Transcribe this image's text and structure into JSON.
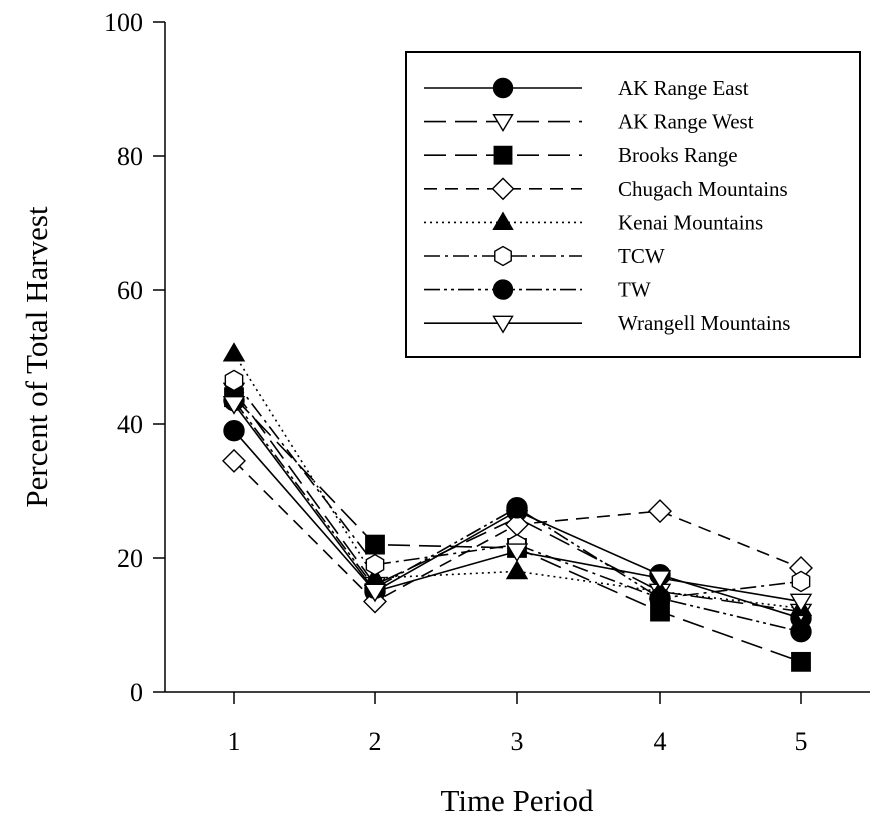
{
  "chart_data": {
    "type": "line",
    "title": "",
    "xlabel": "Time Period",
    "ylabel": "Percent of Total Harvest",
    "x": [
      1,
      2,
      3,
      4,
      5
    ],
    "x_ticks": [
      "1",
      "2",
      "3",
      "4",
      "5"
    ],
    "ylim": [
      0,
      100
    ],
    "y_ticks": [
      "0",
      "20",
      "40",
      "60",
      "80",
      "100"
    ],
    "grid": false,
    "legend_position": "top-right",
    "series": [
      {
        "name": "AK Range East",
        "values": [
          39,
          15,
          27,
          17.5,
          11
        ],
        "marker": "circle",
        "fill": "filled",
        "dash": "solid"
      },
      {
        "name": "AK Range West",
        "values": [
          45,
          16,
          26,
          15,
          12
        ],
        "marker": "triangle-down",
        "fill": "open",
        "dash": "long-dash"
      },
      {
        "name": "Brooks Range",
        "values": [
          44,
          22,
          21.5,
          12,
          4.5
        ],
        "marker": "square",
        "fill": "filled",
        "dash": "long-dash"
      },
      {
        "name": "Chugach Mountains",
        "values": [
          34.5,
          13.5,
          25,
          27,
          18.5
        ],
        "marker": "diamond",
        "fill": "open",
        "dash": "dash"
      },
      {
        "name": "Kenai Mountains",
        "values": [
          50.5,
          17,
          18,
          15,
          12.5
        ],
        "marker": "triangle-up",
        "fill": "filled",
        "dash": "dot"
      },
      {
        "name": "TCW",
        "values": [
          46.5,
          19,
          22,
          14,
          16.5
        ],
        "marker": "hexagon",
        "fill": "open",
        "dash": "dash-dot"
      },
      {
        "name": "TW",
        "values": [
          43.5,
          15.5,
          27.5,
          14,
          9
        ],
        "marker": "circle",
        "fill": "filled",
        "dash": "dash-dot-dot"
      },
      {
        "name": "Wrangell Mountains",
        "values": [
          43,
          15,
          21,
          17,
          13.5
        ],
        "marker": "triangle-down",
        "fill": "open",
        "dash": "solid"
      }
    ]
  }
}
